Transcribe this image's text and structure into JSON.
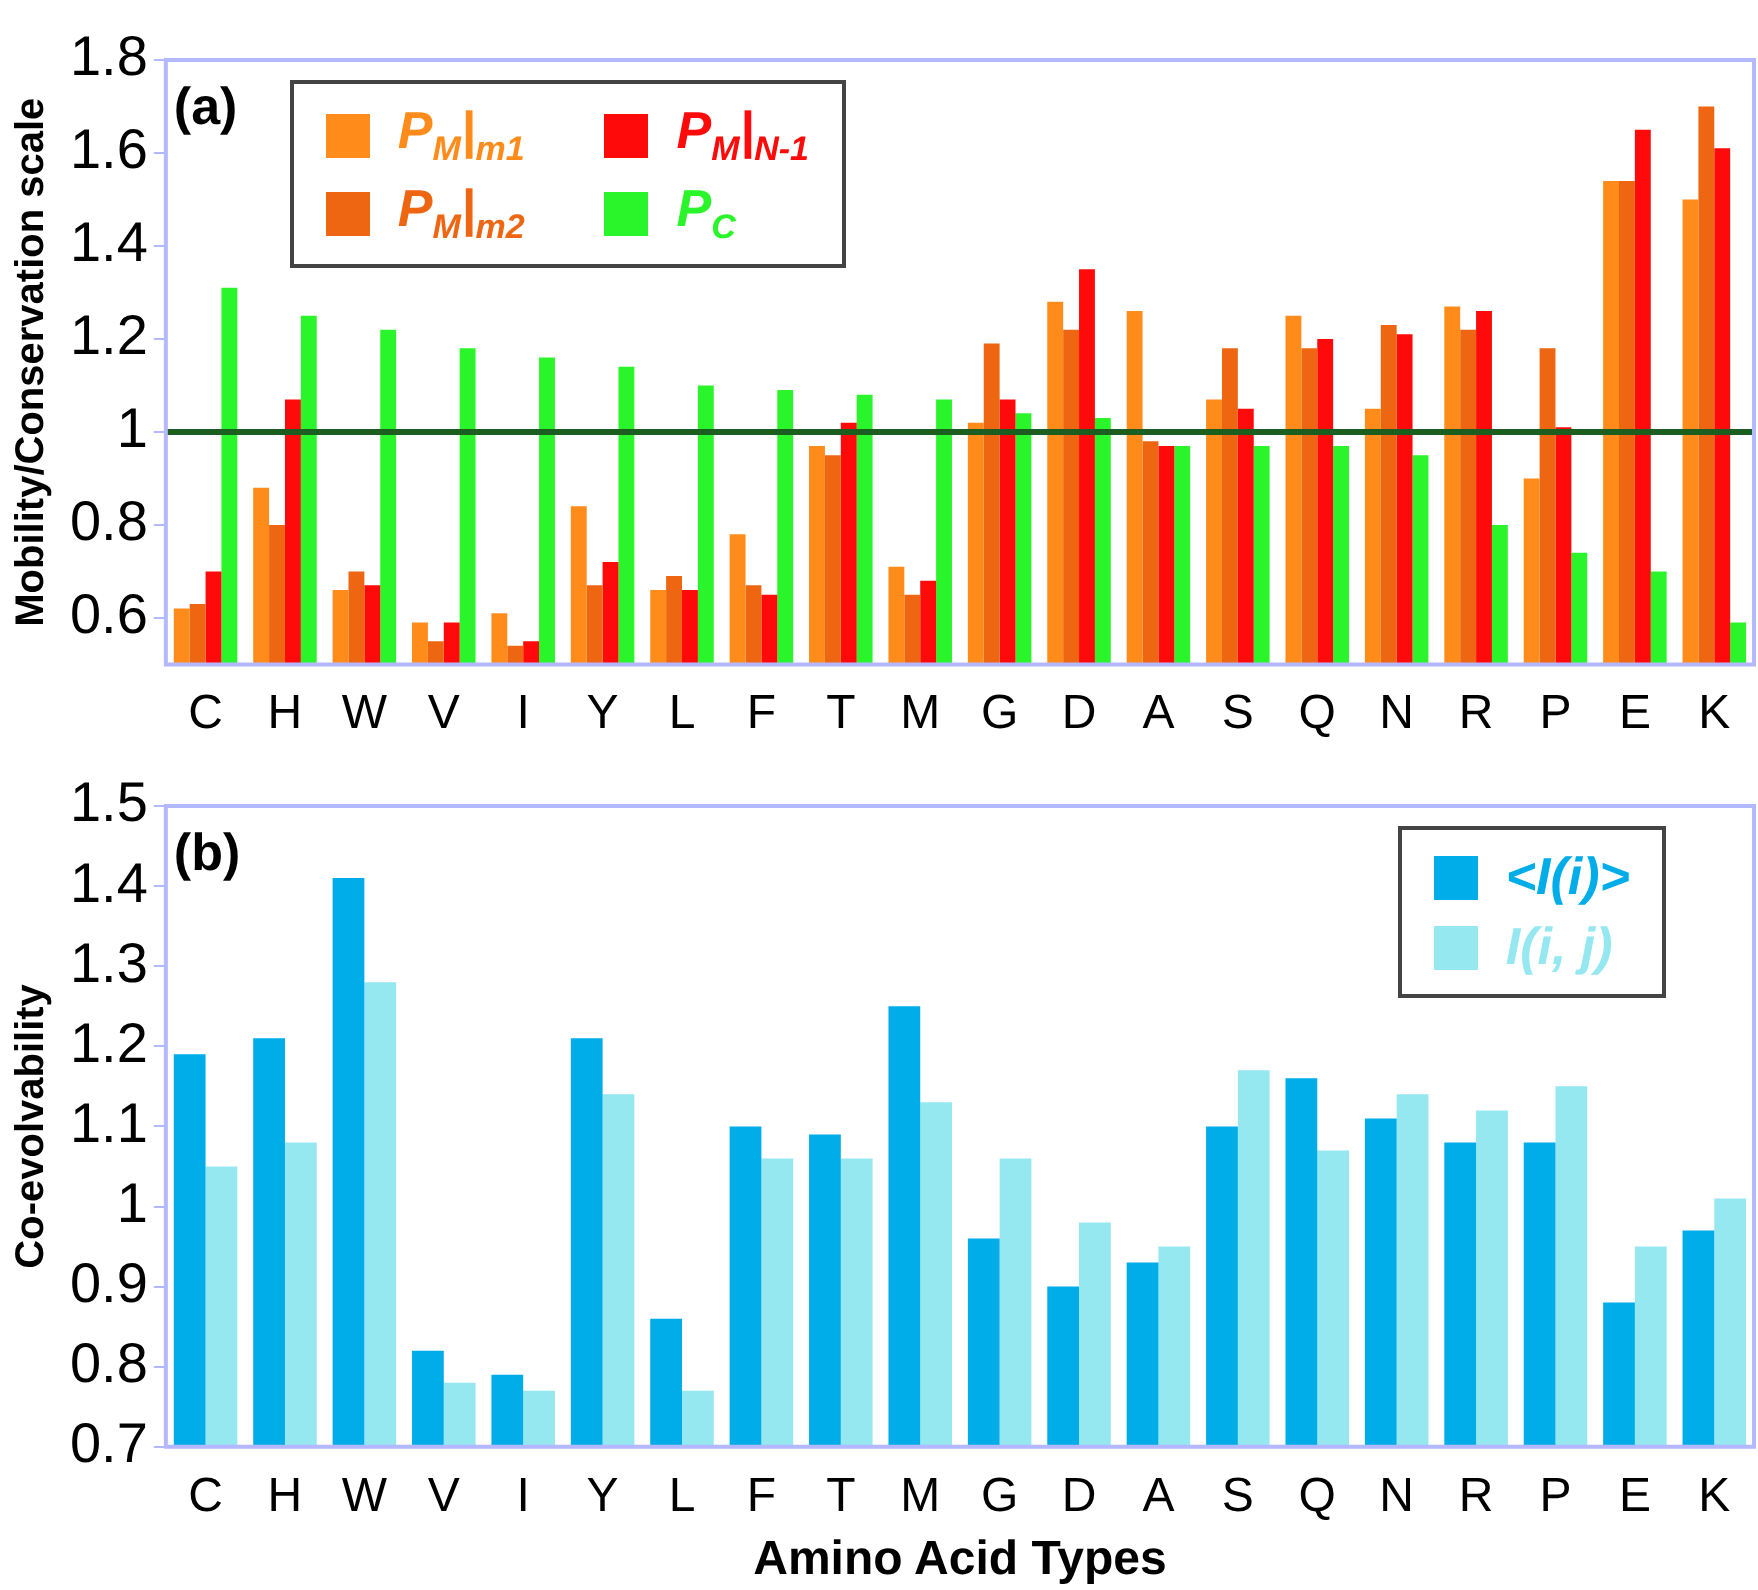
{
  "chart_data": [
    {
      "type": "bar",
      "ylabel": "Mobility/Conservation scale",
      "annotations": [
        "(a)"
      ],
      "categories": [
        "C",
        "H",
        "W",
        "V",
        "I",
        "Y",
        "L",
        "F",
        "T",
        "M",
        "G",
        "D",
        "A",
        "S",
        "Q",
        "N",
        "R",
        "P",
        "E",
        "K"
      ],
      "series": [
        {
          "name": "P$_{M}$|$_{m1}$",
          "color": "#ff8c1a",
          "values": [
            0.62,
            0.88,
            0.66,
            0.59,
            0.61,
            0.84,
            0.66,
            0.78,
            0.97,
            0.71,
            1.02,
            1.28,
            1.26,
            1.07,
            1.25,
            1.05,
            1.27,
            0.9,
            1.54,
            1.5
          ]
        },
        {
          "name": "P$_{M}$|$_{m2}$",
          "color": "#ee6611",
          "values": [
            0.63,
            0.8,
            0.7,
            0.55,
            0.54,
            0.67,
            0.69,
            0.67,
            0.95,
            0.65,
            1.19,
            1.22,
            0.98,
            1.18,
            1.18,
            1.23,
            1.22,
            1.18,
            1.54,
            1.7
          ]
        },
        {
          "name": "P$_{M}$|$_{N-1}$",
          "color": "#ff0a0a",
          "values": [
            0.7,
            1.07,
            0.67,
            0.59,
            0.55,
            0.72,
            0.66,
            0.65,
            1.02,
            0.68,
            1.07,
            1.35,
            0.97,
            1.05,
            1.2,
            1.21,
            1.26,
            1.01,
            1.65,
            1.61
          ]
        },
        {
          "name": "P$_{C}$",
          "color": "#2af52a",
          "values": [
            1.31,
            1.25,
            1.22,
            1.18,
            1.16,
            1.14,
            1.1,
            1.09,
            1.08,
            1.07,
            1.04,
            1.03,
            0.97,
            0.97,
            0.97,
            0.95,
            0.8,
            0.74,
            0.7,
            0.59
          ]
        }
      ],
      "ylim": [
        0.5,
        1.8
      ],
      "yticks": [
        0.6,
        0.8,
        1,
        1.2,
        1.4,
        1.6,
        1.8
      ],
      "grid": false,
      "legend": "top left",
      "ref_lines": [
        {
          "axis": "y",
          "value": 1,
          "color": "#1b5e20"
        }
      ]
    },
    {
      "type": "bar",
      "ylabel": "Co-evolvability",
      "xlabel": "Amino Acid Types",
      "annotations": [
        "(b)"
      ],
      "categories": [
        "C",
        "H",
        "W",
        "V",
        "I",
        "Y",
        "L",
        "F",
        "T",
        "M",
        "G",
        "D",
        "A",
        "S",
        "Q",
        "N",
        "R",
        "P",
        "E",
        "K"
      ],
      "series": [
        {
          "name": "<I(i)>",
          "color": "#00ade8",
          "values": [
            1.19,
            1.21,
            1.41,
            0.82,
            0.79,
            1.21,
            0.86,
            1.1,
            1.09,
            1.25,
            0.96,
            0.9,
            0.93,
            1.1,
            1.16,
            1.11,
            1.08,
            1.08,
            0.88,
            0.97
          ]
        },
        {
          "name": "I(i, j)",
          "color": "#95e7f0",
          "values": [
            1.05,
            1.08,
            1.28,
            0.78,
            0.77,
            1.14,
            0.77,
            1.06,
            1.06,
            1.13,
            1.06,
            0.98,
            0.95,
            1.17,
            1.07,
            1.14,
            1.12,
            1.15,
            0.95,
            1.01
          ]
        }
      ],
      "ylim": [
        0.7,
        1.5
      ],
      "yticks": [
        0.7,
        0.8,
        0.9,
        1,
        1.1,
        1.2,
        1.3,
        1.4,
        1.5
      ],
      "grid": false,
      "legend": "top right"
    }
  ]
}
